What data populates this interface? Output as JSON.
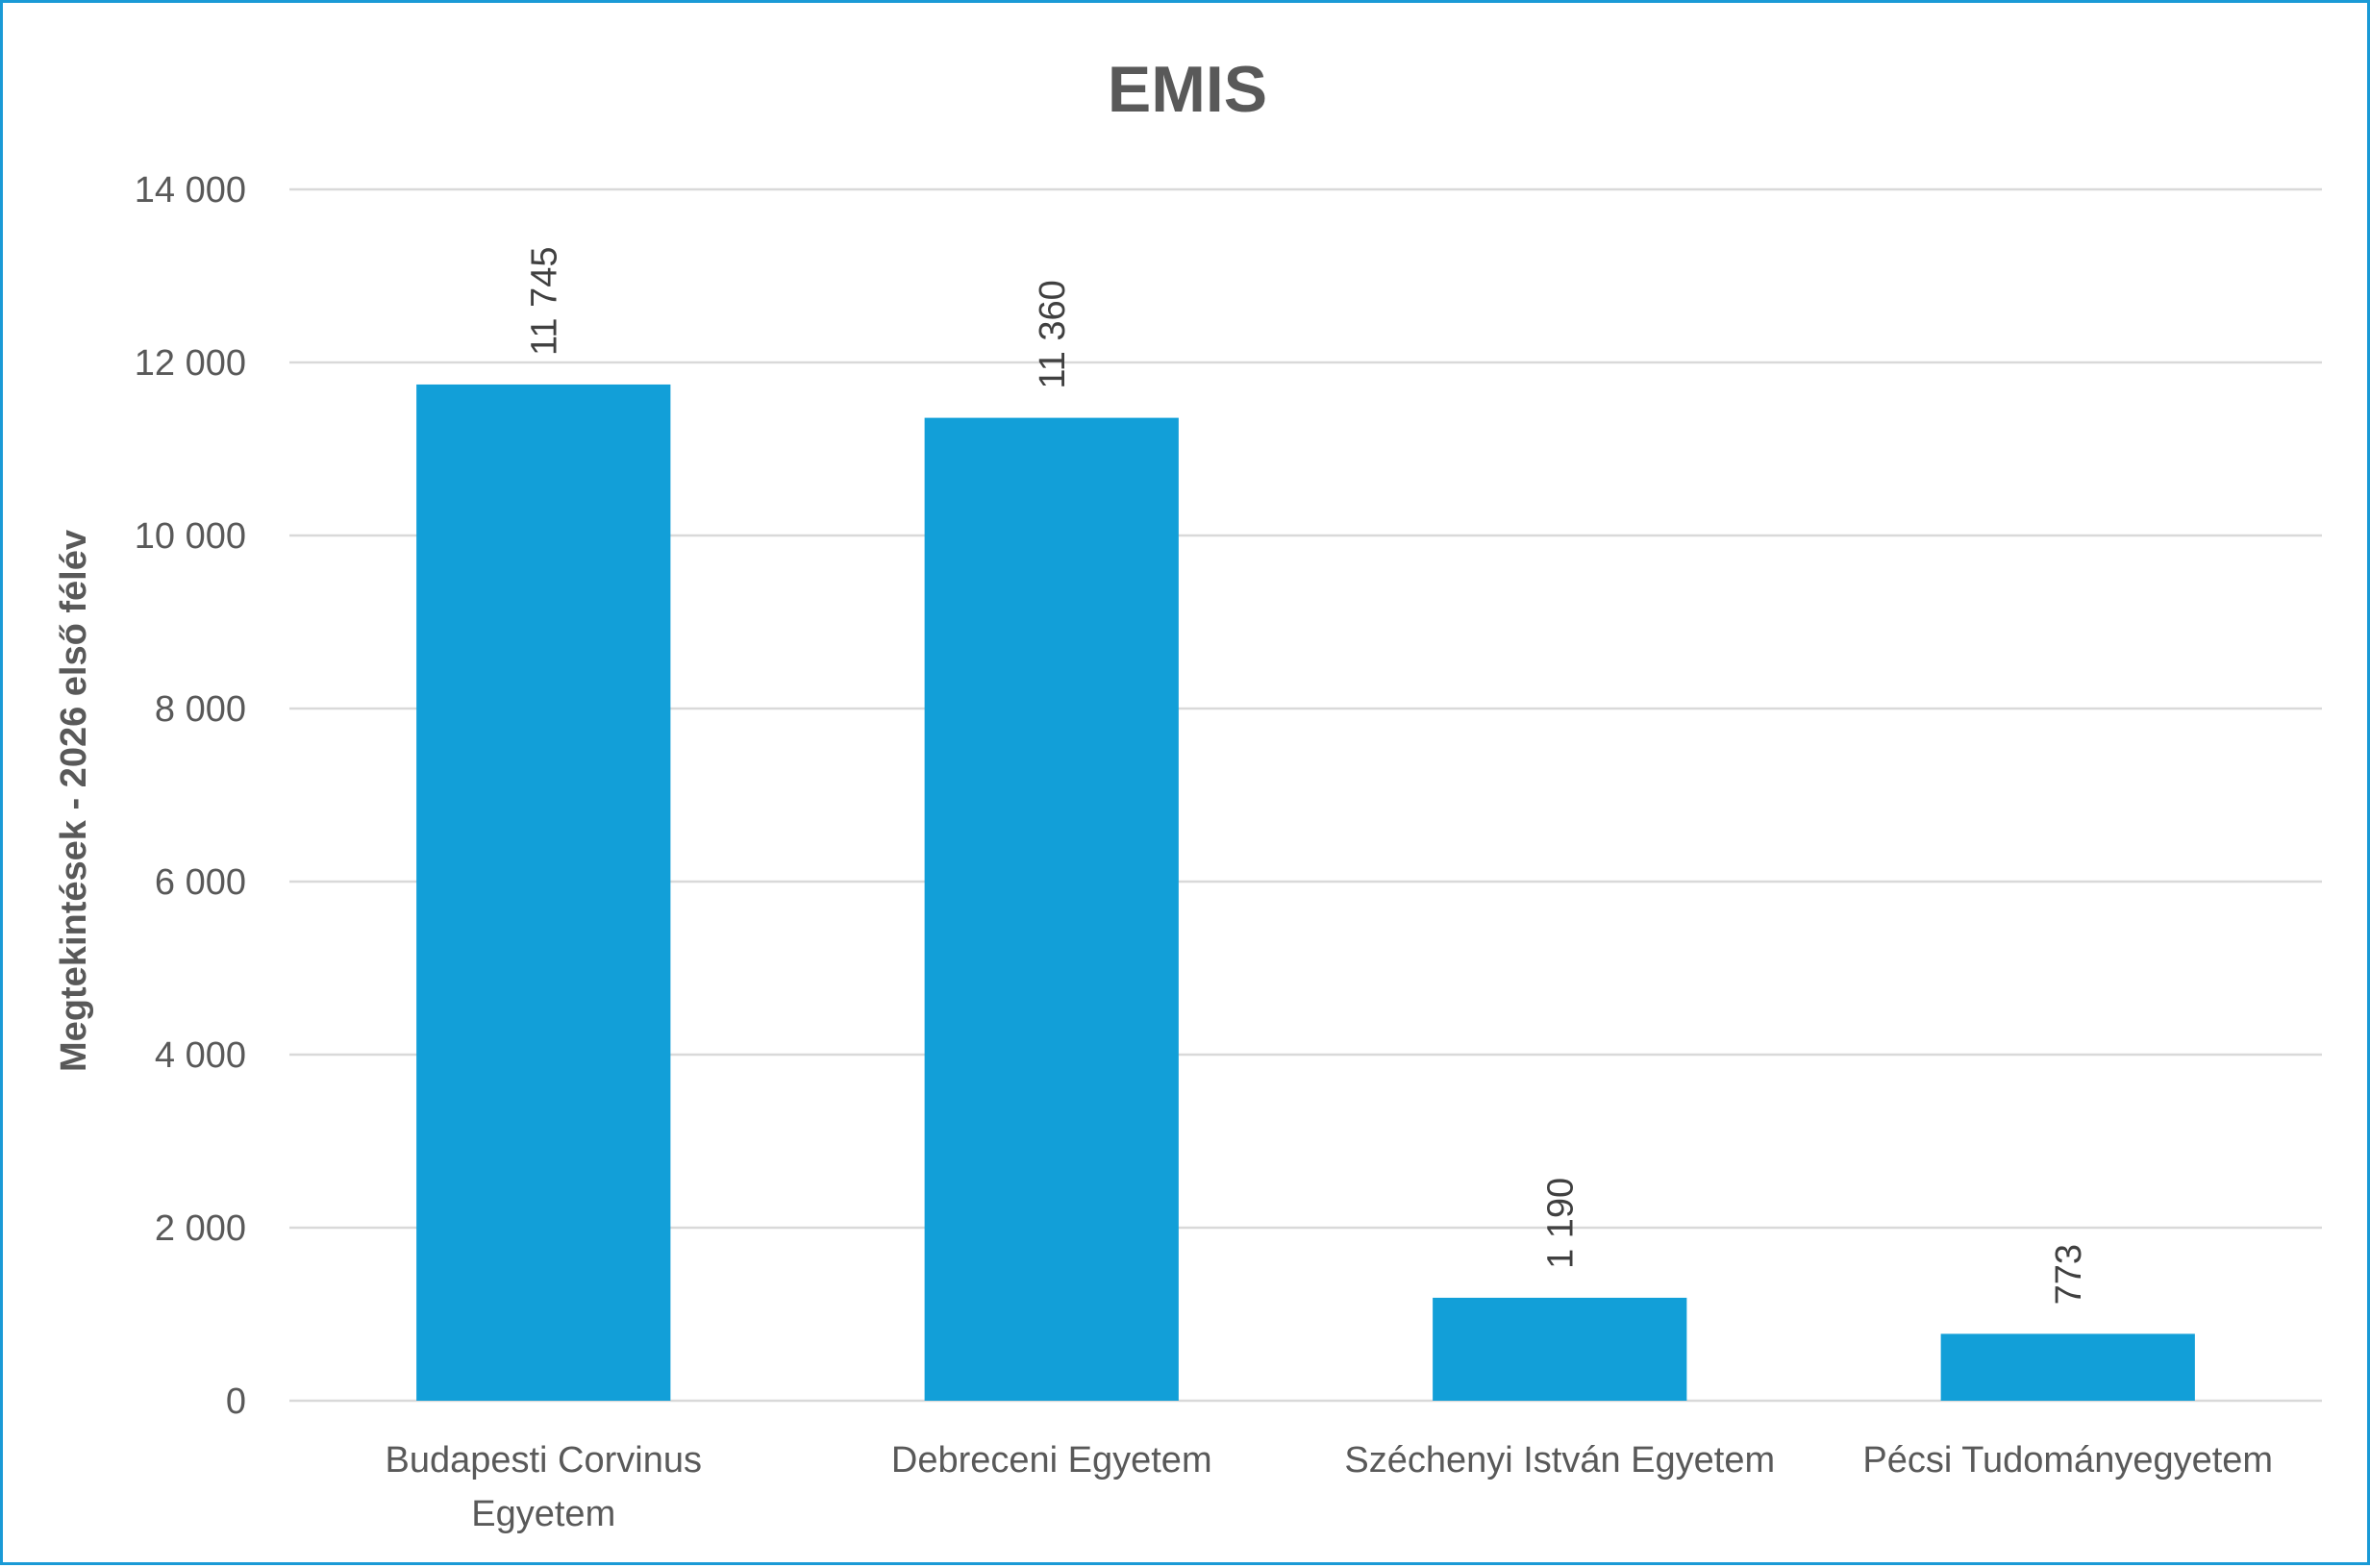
{
  "chart_data": {
    "type": "bar",
    "title": "EMIS",
    "ylabel": "Megtekintések - 2026 első félév",
    "xlabel": "",
    "categories": [
      [
        "Budapesti Corvinus",
        "Egyetem"
      ],
      [
        "Debreceni Egyetem"
      ],
      [
        "Széchenyi István Egyetem"
      ],
      [
        "Pécsi Tudományegyetem"
      ]
    ],
    "values": [
      11745,
      11360,
      1190,
      773
    ],
    "value_labels": [
      "11 745",
      "11 360",
      "1 190",
      "773"
    ],
    "ylim": [
      0,
      14000
    ],
    "yticks": [
      0,
      2000,
      4000,
      6000,
      8000,
      10000,
      12000,
      14000
    ],
    "ytick_labels": [
      "0",
      "2 000",
      "4 000",
      "6 000",
      "8 000",
      "10 000",
      "12 000",
      "14 000"
    ],
    "grid": true,
    "bar_color": "#129fd8",
    "frame_color": "#1a9ad6",
    "legend": "none"
  }
}
